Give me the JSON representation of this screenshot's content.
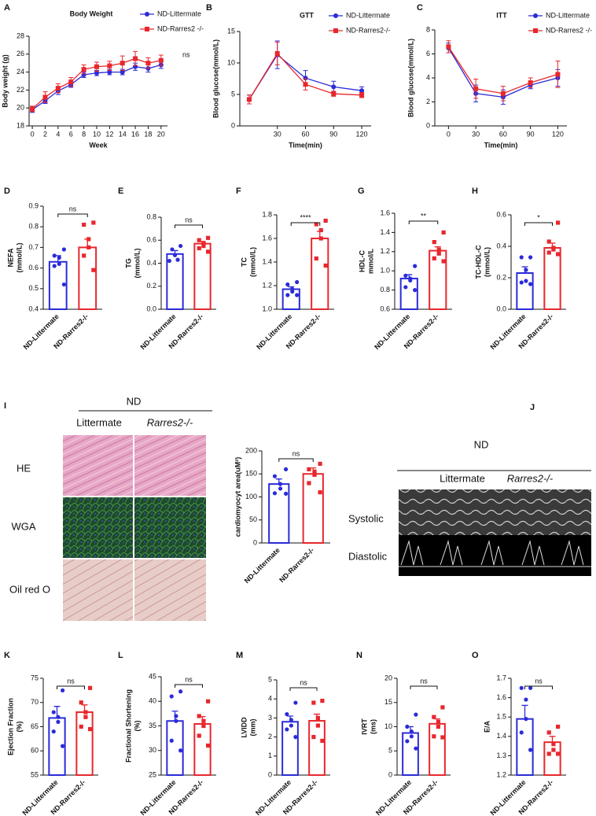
{
  "chart_data": [
    {
      "panel": "A",
      "type": "line",
      "title": "Body Weight",
      "xlabel": "Week",
      "ylabel": "Body weight (g)",
      "annotation": "ns",
      "x": [
        0,
        2,
        4,
        6,
        8,
        10,
        12,
        14,
        16,
        18,
        20
      ],
      "xlim": [
        -0.5,
        21
      ],
      "xticks": [
        0,
        2,
        4,
        6,
        8,
        10,
        12,
        14,
        16,
        18,
        20
      ],
      "ylim": [
        18,
        28
      ],
      "yticks": [
        18,
        20,
        22,
        24,
        26,
        28
      ],
      "series": [
        {
          "name": "ND-Littermate",
          "color": "#2b2bd9",
          "marker": "circle",
          "values": [
            19.8,
            20.8,
            21.9,
            22.6,
            23.7,
            23.9,
            24.0,
            24.0,
            24.6,
            24.4,
            24.8
          ],
          "errors": [
            0.3,
            0.3,
            0.4,
            0.3,
            0.3,
            0.3,
            0.3,
            0.3,
            0.4,
            0.4,
            0.4
          ]
        },
        {
          "name": "ND-Rarres2 -/-",
          "color": "#e8272d",
          "marker": "square",
          "values": [
            19.9,
            21.2,
            22.2,
            22.9,
            24.3,
            24.6,
            24.7,
            25.0,
            25.5,
            25.0,
            25.3
          ],
          "errors": [
            0.3,
            0.6,
            0.5,
            0.5,
            0.5,
            0.5,
            0.5,
            0.8,
            0.8,
            0.6,
            0.6
          ]
        }
      ]
    },
    {
      "panel": "B",
      "type": "line",
      "title": "GTT",
      "xlabel": "Time(min)",
      "ylabel": "Blood glucose(mmol/L)",
      "x": [
        0,
        30,
        60,
        90,
        120
      ],
      "xlim": [
        -10,
        130
      ],
      "xticks": [
        30,
        60,
        90,
        120
      ],
      "ylim": [
        0,
        15
      ],
      "yticks": [
        0,
        5,
        10,
        15
      ],
      "series": [
        {
          "name": "ND-Littermate",
          "color": "#2b2bd9",
          "marker": "circle",
          "values": [
            4.2,
            11.3,
            7.6,
            6.2,
            5.6
          ],
          "errors": [
            0.7,
            2.2,
            1.2,
            0.9,
            0.6
          ]
        },
        {
          "name": "ND-Rarres2-/-",
          "color": "#e8272d",
          "marker": "square",
          "values": [
            4.2,
            11.5,
            6.6,
            5.1,
            4.9
          ],
          "errors": [
            0.7,
            1.8,
            0.9,
            0.4,
            0.4
          ]
        }
      ]
    },
    {
      "panel": "C",
      "type": "line",
      "title": "ITT",
      "xlabel": "Time(min)",
      "ylabel": "Blood glucose(mmol/L)",
      "x": [
        0,
        30,
        60,
        90,
        120
      ],
      "xlim": [
        -15,
        130
      ],
      "xticks": [
        0,
        30,
        60,
        90,
        120
      ],
      "ylim": [
        0,
        8
      ],
      "yticks": [
        0,
        2,
        4,
        6,
        8
      ],
      "series": [
        {
          "name": "ND-Littermate",
          "color": "#2b2bd9",
          "marker": "circle",
          "values": [
            6.5,
            2.7,
            2.4,
            3.4,
            4.0
          ],
          "errors": [
            0.4,
            0.7,
            0.6,
            0.3,
            0.7
          ]
        },
        {
          "name": "ND-Rarres2 -/-",
          "color": "#e8272d",
          "marker": "square",
          "values": [
            6.6,
            3.1,
            2.7,
            3.6,
            4.3
          ],
          "errors": [
            0.5,
            0.8,
            0.6,
            0.4,
            1.1
          ]
        }
      ]
    },
    {
      "panel": "D",
      "type": "bar",
      "ylabel": [
        "NEFA",
        "(mmol/L)"
      ],
      "annotation": "ns",
      "categories": [
        "ND-Littermate",
        "ND-Rarres2-/-"
      ],
      "colors": [
        "#2b2bd9",
        "#e8272d"
      ],
      "values": [
        0.63,
        0.7
      ],
      "errors": [
        0.03,
        0.04
      ],
      "points": [
        [
          0.69,
          0.66,
          0.65,
          0.62,
          0.61,
          0.52
        ],
        [
          0.82,
          0.81,
          0.74,
          0.7,
          0.66,
          0.59
        ]
      ],
      "ylim": [
        0.4,
        0.9
      ],
      "yticks": [
        0.4,
        0.5,
        0.6,
        0.7,
        0.8,
        0.9
      ]
    },
    {
      "panel": "E",
      "type": "bar",
      "ylabel": [
        "TG",
        "(mmol/L)"
      ],
      "annotation": "ns",
      "categories": [
        "ND-Littermate",
        "ND-Rarres2-/-"
      ],
      "colors": [
        "#2b2bd9",
        "#e8272d"
      ],
      "values": [
        0.48,
        0.57
      ],
      "errors": [
        0.03,
        0.02
      ],
      "points": [
        [
          0.55,
          0.52,
          0.47,
          0.43,
          0.42
        ],
        [
          0.62,
          0.6,
          0.57,
          0.55,
          0.53,
          0.5
        ]
      ],
      "ylim": [
        0,
        0.8
      ],
      "yticks": [
        {
          "value": 0,
          "label": "0.0"
        },
        0.2,
        0.4,
        0.6,
        0.8
      ]
    },
    {
      "panel": "F",
      "type": "bar",
      "ylabel": [
        "TC",
        "(mmol/L)"
      ],
      "annotation": "****",
      "categories": [
        "ND-Littermate",
        "ND-Rarres2-/-"
      ],
      "colors": [
        "#2b2bd9",
        "#e8272d"
      ],
      "values": [
        1.17,
        1.6
      ],
      "errors": [
        0.02,
        0.06
      ],
      "points": [
        [
          1.23,
          1.21,
          1.17,
          1.15,
          1.12,
          1.12
        ],
        [
          1.75,
          1.72,
          1.67,
          1.6,
          1.43,
          1.37
        ]
      ],
      "ylim": [
        1.0,
        1.8
      ],
      "yticks": [
        {
          "value": 1,
          "label": "1.0"
        },
        1.2,
        1.4,
        1.6,
        1.8
      ]
    },
    {
      "panel": "G",
      "type": "bar",
      "ylabel": [
        "HDL-C",
        "mmol/L"
      ],
      "annotation": "**",
      "categories": [
        "ND-Littermate",
        "ND-Rarres2-/-"
      ],
      "colors": [
        "#2b2bd9",
        "#e8272d"
      ],
      "values": [
        0.92,
        1.21
      ],
      "errors": [
        0.04,
        0.04
      ],
      "points": [
        [
          1.05,
          0.95,
          0.92,
          0.9,
          0.83,
          0.8
        ],
        [
          1.4,
          1.3,
          1.22,
          1.18,
          1.13,
          1.1
        ]
      ],
      "ylim": [
        0.6,
        1.6
      ],
      "yticks": [
        0.6,
        0.8,
        {
          "value": 1,
          "label": "1.0"
        },
        1.2,
        1.4,
        1.6
      ]
    },
    {
      "panel": "H",
      "type": "bar",
      "ylabel": [
        "TC-HDL-C",
        "(mmol/L)"
      ],
      "annotation": "*",
      "categories": [
        "ND-Littermate",
        "ND-Rarres2-/-"
      ],
      "colors": [
        "#2b2bd9",
        "#e8272d"
      ],
      "values": [
        0.23,
        0.39
      ],
      "errors": [
        0.04,
        0.03
      ],
      "points": [
        [
          0.33,
          0.33,
          0.25,
          0.18,
          0.17,
          0.16
        ],
        [
          0.55,
          0.43,
          0.39,
          0.38,
          0.36,
          0.35
        ]
      ],
      "ylim": [
        0,
        0.6
      ],
      "yticks": [
        {
          "value": 0,
          "label": "0.0"
        },
        0.2,
        0.4,
        0.6
      ]
    },
    {
      "type": "bar",
      "ylabel": "cardiomyocyt area(uM²)",
      "annotation": "ns",
      "categories": [
        "ND-Littermate",
        "ND-Rarres2-/-"
      ],
      "colors": [
        "#2b2bd9",
        "#e8272d"
      ],
      "values": [
        128,
        150
      ],
      "errors": [
        11,
        13
      ],
      "points": [
        [
          160,
          145,
          128,
          118,
          108,
          107
        ],
        [
          172,
          160,
          155,
          148,
          130,
          110
        ]
      ],
      "ylim": [
        0,
        200
      ],
      "yticks": [
        0,
        50,
        100,
        150,
        200
      ]
    },
    {
      "panel": "K",
      "type": "bar",
      "ylabel": [
        "Ejection Fraction",
        "(%)"
      ],
      "annotation": "ns",
      "categories": [
        "ND-Littermate",
        "ND-Rarres2-/-"
      ],
      "colors": [
        "#2b2bd9",
        "#e8272d"
      ],
      "values": [
        66.8,
        68.0
      ],
      "errors": [
        2.4,
        1.5
      ],
      "points": [
        [
          72.5,
          68,
          67,
          66,
          64,
          61
        ],
        [
          73,
          70,
          68,
          67,
          65,
          64.5
        ]
      ],
      "ylim": [
        55,
        75
      ],
      "yticks": [
        55,
        60,
        65,
        70,
        75
      ]
    },
    {
      "panel": "L",
      "type": "bar",
      "ylabel": [
        "Fractional Shortening",
        "(%)"
      ],
      "annotation": "ns",
      "categories": [
        "ND-Littermate",
        "ND-Rarres2-/-"
      ],
      "colors": [
        "#2b2bd9",
        "#e8272d"
      ],
      "values": [
        36.0,
        35.4
      ],
      "errors": [
        2.0,
        1.5
      ],
      "points": [
        [
          42,
          41,
          37,
          36,
          32,
          30
        ],
        [
          40,
          37,
          36,
          35,
          33,
          31
        ]
      ],
      "ylim": [
        25,
        45
      ],
      "yticks": [
        25,
        30,
        35,
        40,
        45
      ]
    },
    {
      "panel": "M",
      "type": "bar",
      "ylabel": [
        "LVIDD",
        "(mm)"
      ],
      "annotation": "ns",
      "categories": [
        "ND-Littermate",
        "ND-Rarres2-/-"
      ],
      "colors": [
        "#2b2bd9",
        "#e8272d"
      ],
      "values": [
        2.8,
        2.85
      ],
      "errors": [
        0.3,
        0.35
      ],
      "points": [
        [
          3.8,
          3.2,
          2.9,
          2.6,
          2.4,
          2.0
        ],
        [
          3.9,
          3.8,
          3.0,
          2.6,
          2.0,
          1.8
        ]
      ],
      "ylim": [
        0,
        5
      ],
      "yticks": [
        0,
        1,
        2,
        3,
        4,
        5
      ]
    },
    {
      "panel": "N",
      "type": "bar",
      "ylabel": [
        "IVRT",
        "(ms)"
      ],
      "annotation": "ns",
      "categories": [
        "ND-Littermate",
        "ND-Rarres2-/-"
      ],
      "colors": [
        "#2b2bd9",
        "#e8272d"
      ],
      "values": [
        8.7,
        10.6
      ],
      "errors": [
        1.3,
        1.0
      ],
      "points": [
        [
          12.5,
          10,
          9,
          8,
          7,
          5.5
        ],
        [
          14,
          12,
          11,
          10,
          8,
          7.8
        ]
      ],
      "ylim": [
        0,
        20
      ],
      "yticks": [
        0,
        5,
        10,
        15,
        20
      ]
    },
    {
      "panel": "O",
      "type": "bar",
      "ylabel": "E/A",
      "annotation": "ns",
      "categories": [
        "ND-Littermate",
        "ND-Rarres2-/-"
      ],
      "colors": [
        "#2b2bd9",
        "#e8272d"
      ],
      "values": [
        1.49,
        1.37
      ],
      "errors": [
        0.07,
        0.03
      ],
      "points": [
        [
          1.65,
          1.65,
          1.59,
          1.49,
          1.42,
          1.33
        ],
        [
          1.45,
          1.42,
          1.36,
          1.33,
          1.31,
          1.31
        ]
      ],
      "ylim": [
        1.2,
        1.7
      ],
      "yticks": [
        1.2,
        1.3,
        1.4,
        1.5,
        1.6,
        1.7
      ]
    }
  ],
  "figure_panels": {
    "I": {
      "panel": "I",
      "group": "ND",
      "columns": [
        "Littermate",
        "Rarres2-/-"
      ],
      "rows": [
        "HE",
        "WGA",
        "Oil red O"
      ]
    },
    "J": {
      "panel": "J",
      "group": "ND",
      "columns": [
        "Littermate",
        "Rarres2-/-"
      ],
      "rows": [
        "Systolic",
        "Diastolic"
      ]
    }
  }
}
